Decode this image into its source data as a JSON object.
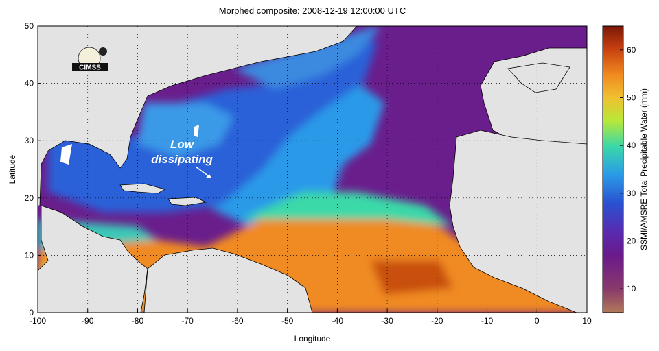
{
  "title": "Morphed composite: 2008-12-19 12:00:00 UTC",
  "logo": {
    "text": "CIMSS"
  },
  "annotation": {
    "line1": "Low",
    "line2": "dissipating"
  },
  "chart_data": {
    "type": "heatmap",
    "title": "Morphed composite: 2008-12-19 12:00:00 UTC",
    "xlabel": "Longitude",
    "ylabel": "Latitude",
    "xlim": [
      -100,
      10
    ],
    "ylim": [
      0,
      50
    ],
    "x_ticks": [
      -100,
      -90,
      -80,
      -70,
      -60,
      -50,
      -40,
      -30,
      -20,
      -10,
      0,
      10
    ],
    "y_ticks": [
      0,
      10,
      20,
      30,
      40,
      50
    ],
    "grid": "dotted",
    "colorbar": {
      "label": "SSMI/AMSRE Total Precipitable Water (mm)",
      "range": [
        5,
        65
      ],
      "ticks": [
        10,
        20,
        30,
        40,
        50,
        60
      ],
      "stops": [
        {
          "value": 5,
          "color": "#b07a5a"
        },
        {
          "value": 10,
          "color": "#8a3a6a"
        },
        {
          "value": 17,
          "color": "#6a1a8a"
        },
        {
          "value": 22,
          "color": "#5a2ab0"
        },
        {
          "value": 28,
          "color": "#2a50d0"
        },
        {
          "value": 34,
          "color": "#2a9ae8"
        },
        {
          "value": 40,
          "color": "#3ad8a8"
        },
        {
          "value": 45,
          "color": "#b8e838"
        },
        {
          "value": 50,
          "color": "#f0c030"
        },
        {
          "value": 55,
          "color": "#f08a20"
        },
        {
          "value": 60,
          "color": "#c84010"
        },
        {
          "value": 65,
          "color": "#7a1808"
        }
      ]
    },
    "land_color": "#e3e3e3"
  }
}
